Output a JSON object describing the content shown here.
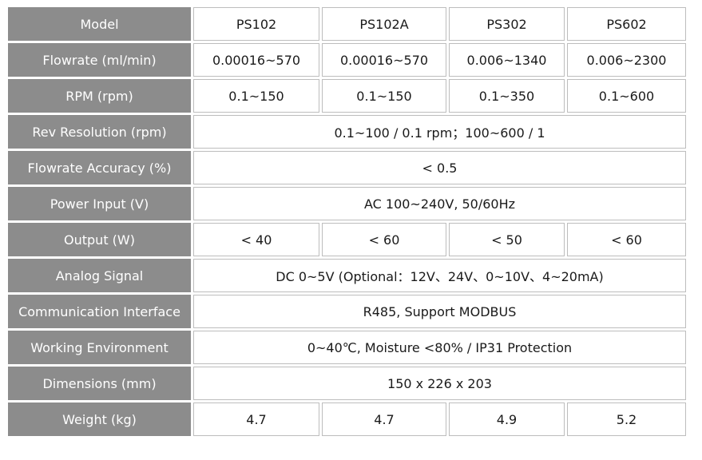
{
  "table": {
    "rows": [
      {
        "label": "Model",
        "cells": [
          "PS102",
          "PS102A",
          "PS302",
          "PS602"
        ]
      },
      {
        "label": "Flowrate (ml/min)",
        "cells": [
          "0.00016~570",
          "0.00016~570",
          "0.006~1340",
          "0.006~2300"
        ]
      },
      {
        "label": "RPM (rpm)",
        "cells": [
          "0.1~150",
          "0.1~150",
          "0.1~350",
          "0.1~600"
        ]
      },
      {
        "label": "Rev Resolution (rpm)",
        "span": "0.1~100 / 0.1 rpm；100~600 / 1"
      },
      {
        "label": "Flowrate Accuracy (%)",
        "span": "< 0.5"
      },
      {
        "label": "Power Input (V)",
        "span": "AC 100~240V, 50/60Hz"
      },
      {
        "label": "Output (W)",
        "cells": [
          "< 40",
          "< 60",
          "< 50",
          "< 60"
        ]
      },
      {
        "label": "Analog Signal",
        "span": "DC 0~5V (Optional：12V、24V、0~10V、4~20mA)"
      },
      {
        "label": "Communication Interface",
        "span": "R485, Support MODBUS"
      },
      {
        "label": "Working Environment",
        "span": "0~40℃, Moisture <80% / IP31 Protection"
      },
      {
        "label": "Dimensions (mm)",
        "span": "150 x 226 x 203"
      },
      {
        "label": "Weight (kg)",
        "cells": [
          "4.7",
          "4.7",
          "4.9",
          "5.2"
        ]
      }
    ]
  }
}
